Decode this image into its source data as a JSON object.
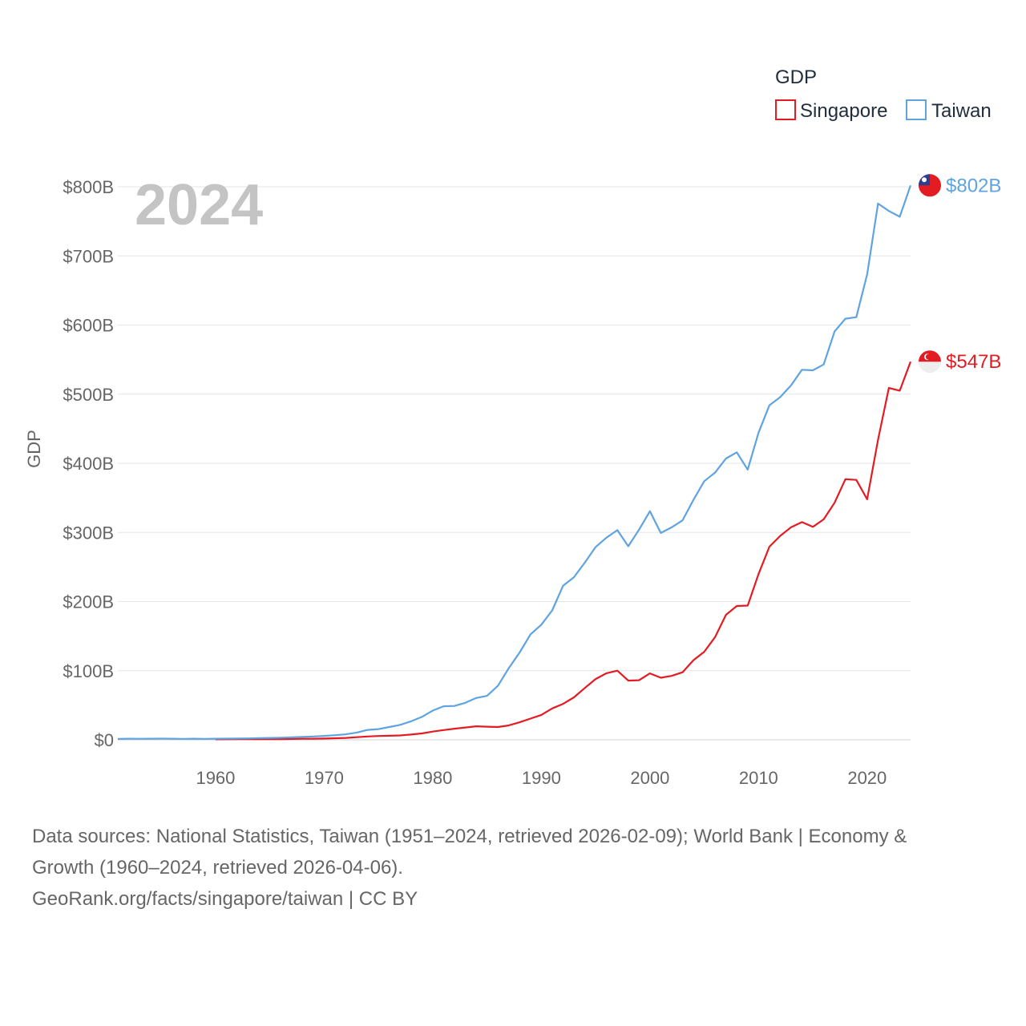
{
  "chart_data": {
    "type": "line",
    "title": "",
    "year_label": "2024",
    "ylabel": "GDP",
    "xlabel": "",
    "xlim": [
      1951,
      2024
    ],
    "ylim": [
      0,
      800
    ],
    "y_ticks": [
      {
        "value": 0,
        "label": "$0"
      },
      {
        "value": 100,
        "label": "$100B"
      },
      {
        "value": 200,
        "label": "$200B"
      },
      {
        "value": 300,
        "label": "$300B"
      },
      {
        "value": 400,
        "label": "$400B"
      },
      {
        "value": 500,
        "label": "$500B"
      },
      {
        "value": 600,
        "label": "$600B"
      },
      {
        "value": 700,
        "label": "$700B"
      },
      {
        "value": 800,
        "label": "$800B"
      }
    ],
    "x_ticks": [
      {
        "value": 1960,
        "label": "1960"
      },
      {
        "value": 1970,
        "label": "1970"
      },
      {
        "value": 1980,
        "label": "1980"
      },
      {
        "value": 1990,
        "label": "1990"
      },
      {
        "value": 2000,
        "label": "2000"
      },
      {
        "value": 2010,
        "label": "2010"
      },
      {
        "value": 2020,
        "label": "2020"
      }
    ],
    "legend": {
      "title": "GDP",
      "position": "top-right"
    },
    "series": [
      {
        "name": "Singapore",
        "color": "#e31b23",
        "end_label": "$547B",
        "x": [
          1960,
          1961,
          1962,
          1963,
          1964,
          1965,
          1966,
          1967,
          1968,
          1969,
          1970,
          1971,
          1972,
          1973,
          1974,
          1975,
          1976,
          1977,
          1978,
          1979,
          1980,
          1981,
          1982,
          1983,
          1984,
          1985,
          1986,
          1987,
          1988,
          1989,
          1990,
          1991,
          1992,
          1993,
          1994,
          1995,
          1996,
          1997,
          1998,
          1999,
          2000,
          2001,
          2002,
          2003,
          2004,
          2005,
          2006,
          2007,
          2008,
          2009,
          2010,
          2011,
          2012,
          2013,
          2014,
          2015,
          2016,
          2017,
          2018,
          2019,
          2020,
          2021,
          2022,
          2023,
          2024
        ],
        "values": [
          0.7,
          0.8,
          0.9,
          0.9,
          0.9,
          1.0,
          1.1,
          1.3,
          1.5,
          1.6,
          1.9,
          2.3,
          2.8,
          3.8,
          4.9,
          5.6,
          5.9,
          6.4,
          7.6,
          9.3,
          11.9,
          14.2,
          16.1,
          17.9,
          19.6,
          19.0,
          18.5,
          20.9,
          25.4,
          30.7,
          36.1,
          45.5,
          52.1,
          61.5,
          75.0,
          88.0,
          96.3,
          100.1,
          85.7,
          86.3,
          96.1,
          89.8,
          92.5,
          97.7,
          115.0,
          127.4,
          148.6,
          180.9,
          193.6,
          194.2,
          239.8,
          279.4,
          295.1,
          307.6,
          314.9,
          308.0,
          319.0,
          343.0,
          377.0,
          376.0,
          348.0,
          434.0,
          509.0,
          505.0,
          547.0
        ]
      },
      {
        "name": "Taiwan",
        "color": "#5fa3e0",
        "end_label": "$802B",
        "x": [
          1951,
          1952,
          1953,
          1954,
          1955,
          1956,
          1957,
          1958,
          1959,
          1960,
          1961,
          1962,
          1963,
          1964,
          1965,
          1966,
          1967,
          1968,
          1969,
          1970,
          1971,
          1972,
          1973,
          1974,
          1975,
          1976,
          1977,
          1978,
          1979,
          1980,
          1981,
          1982,
          1983,
          1984,
          1985,
          1986,
          1987,
          1988,
          1989,
          1990,
          1991,
          1992,
          1993,
          1994,
          1995,
          1996,
          1997,
          1998,
          1999,
          2000,
          2001,
          2002,
          2003,
          2004,
          2005,
          2006,
          2007,
          2008,
          2009,
          2010,
          2011,
          2012,
          2013,
          2014,
          2015,
          2016,
          2017,
          2018,
          2019,
          2020,
          2021,
          2022,
          2023,
          2024
        ],
        "values": [
          1.3,
          1.6,
          1.5,
          1.6,
          1.7,
          1.6,
          1.4,
          1.6,
          1.4,
          1.6,
          1.7,
          1.9,
          2.1,
          2.5,
          2.8,
          3.1,
          3.6,
          4.2,
          4.9,
          5.7,
          6.7,
          8.0,
          10.6,
          14.4,
          15.5,
          18.6,
          21.7,
          26.8,
          33.2,
          42.3,
          48.6,
          49.0,
          53.6,
          60.5,
          63.6,
          78.2,
          103.6,
          126.4,
          152.6,
          166.6,
          187.2,
          222.9,
          235.3,
          256.4,
          279.0,
          292.5,
          303.3,
          280.0,
          304.1,
          330.7,
          299.3,
          307.4,
          317.4,
          346.9,
          374.1,
          386.5,
          406.9,
          415.9,
          390.8,
          444.3,
          483.9,
          495.8,
          512.9,
          535.3,
          534.5,
          543.0,
          590.7,
          609.2,
          611.4,
          673.2,
          775.7,
          765.0,
          756.6,
          802.0
        ]
      }
    ]
  },
  "source_lines": [
    "Data sources: National Statistics, Taiwan (1951–2024, retrieved 2026-02-09); World Bank | Economy &",
    "Growth (1960–2024, retrieved 2026-04-06).",
    "GeoRank.org/facts/singapore/taiwan | CC BY"
  ]
}
